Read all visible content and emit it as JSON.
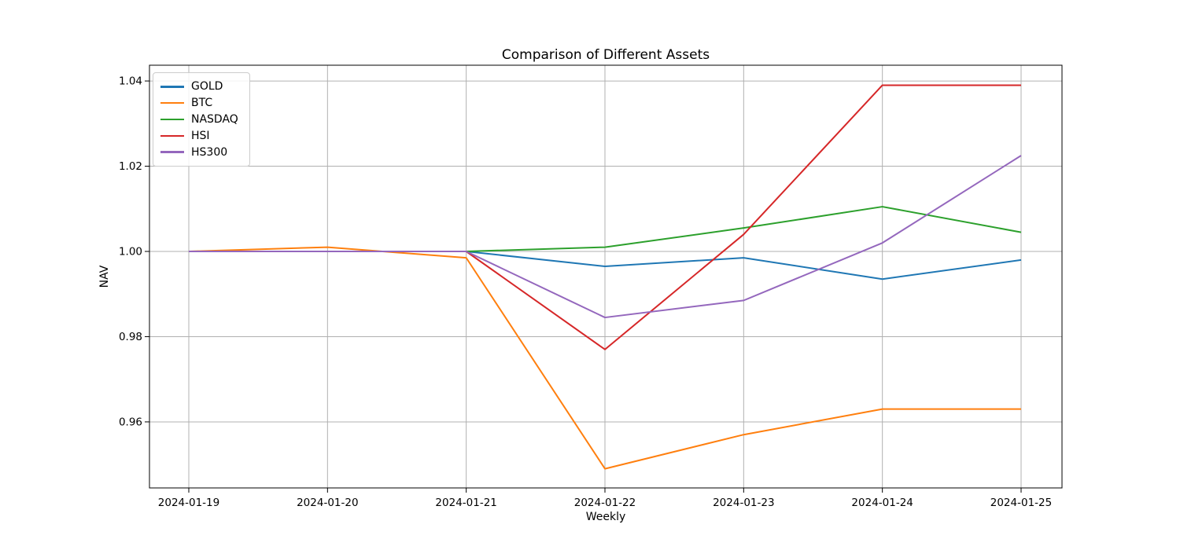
{
  "chart_data": {
    "type": "line",
    "title": "Comparison of Different Assets",
    "xlabel": "Weekly",
    "ylabel": "NAV",
    "categories": [
      "2024-01-19",
      "2024-01-20",
      "2024-01-21",
      "2024-01-22",
      "2024-01-23",
      "2024-01-24",
      "2024-01-25"
    ],
    "series": [
      {
        "name": "GOLD",
        "color": "#1f77b4",
        "values": [
          1.0,
          1.0,
          1.0,
          0.9965,
          0.9985,
          0.9935,
          0.998
        ]
      },
      {
        "name": "BTC",
        "color": "#ff7f0e",
        "values": [
          1.0,
          1.001,
          0.9985,
          0.949,
          0.957,
          0.963,
          0.963
        ]
      },
      {
        "name": "NASDAQ",
        "color": "#2ca02c",
        "values": [
          1.0,
          1.0,
          1.0,
          1.001,
          1.0055,
          1.0105,
          1.0045
        ]
      },
      {
        "name": "HSI",
        "color": "#d62728",
        "values": [
          1.0,
          1.0,
          1.0,
          0.977,
          1.004,
          1.039,
          1.039
        ]
      },
      {
        "name": "HS300",
        "color": "#9467bd",
        "values": [
          1.0,
          1.0,
          1.0,
          0.9845,
          0.9885,
          1.002,
          1.0225
        ]
      }
    ],
    "yticks": [
      0.96,
      0.98,
      1.0,
      1.02,
      1.04
    ],
    "ytick_labels": [
      "0.96",
      "0.98",
      "1.00",
      "1.02",
      "1.04"
    ],
    "ylim": [
      0.9445,
      1.0437
    ],
    "grid": true,
    "grid_color": "#b0b0b0",
    "axis_color": "#000000",
    "legend_position": "upper left"
  }
}
